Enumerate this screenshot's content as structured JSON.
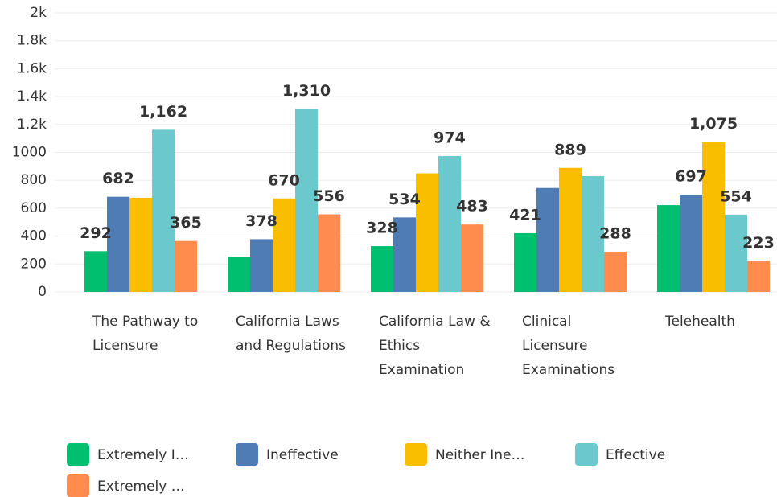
{
  "chart_data": {
    "type": "bar",
    "categories": [
      "The Pathway to Licensure",
      "California Laws and Regulations",
      "California Law & Ethics Examination",
      "Clinical Licensure Examinations",
      "Telehealth"
    ],
    "series": [
      {
        "name": "Extremely I…",
        "color": "#00bf6f",
        "values": [
          292,
          250,
          328,
          421,
          622
        ],
        "value_labels": [
          "292",
          null,
          "328",
          "421",
          null
        ]
      },
      {
        "name": "Ineffective",
        "color": "#507cb6",
        "values": [
          682,
          378,
          534,
          745,
          697
        ],
        "value_labels": [
          "682",
          "378",
          "534",
          null,
          "697"
        ]
      },
      {
        "name": "Neither Ine…",
        "color": "#f9be00",
        "values": [
          675,
          670,
          850,
          889,
          1075
        ],
        "value_labels": [
          null,
          "670",
          null,
          "889",
          "1,075"
        ]
      },
      {
        "name": "Effective",
        "color": "#6bc8cd",
        "values": [
          1162,
          1310,
          974,
          830,
          554
        ],
        "value_labels": [
          "1,162",
          "1,310",
          "974",
          null,
          "554"
        ]
      },
      {
        "name": "Extremely …",
        "color": "#ff8b4f",
        "values": [
          365,
          556,
          483,
          288,
          223
        ],
        "value_labels": [
          "365",
          "556",
          "483",
          "288",
          "223"
        ]
      }
    ],
    "ylim": [
      0,
      2000
    ],
    "yticks": [
      0,
      200,
      400,
      600,
      800,
      1000,
      {
        "value": 1200,
        "label": "1.2k"
      },
      {
        "value": 1400,
        "label": "1.4k"
      },
      {
        "value": 1600,
        "label": "1.6k"
      },
      {
        "value": 1800,
        "label": "1.8k"
      },
      {
        "value": 2000,
        "label": "2k"
      }
    ],
    "grid": true
  }
}
